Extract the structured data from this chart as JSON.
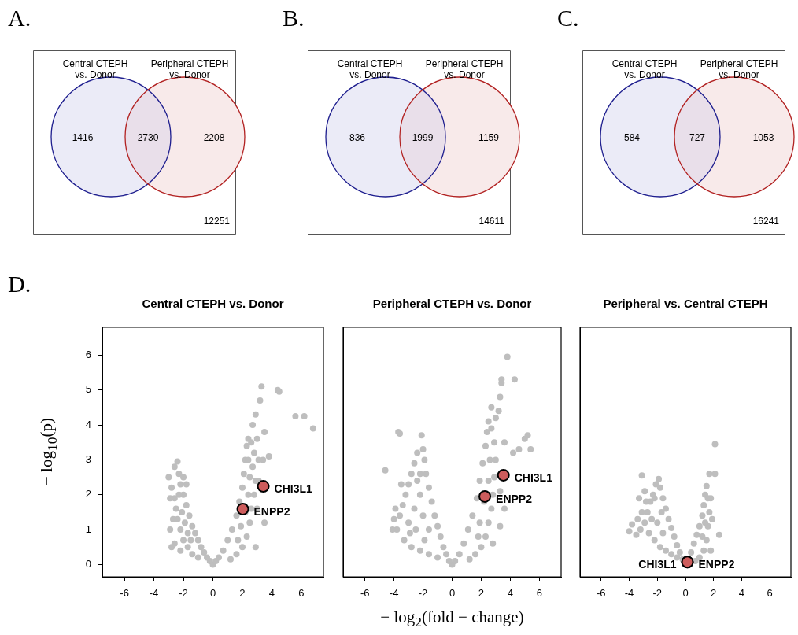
{
  "chart_data": [
    {
      "type": "other",
      "title": "A.",
      "categories": [
        null,
        null,
        null
      ],
      "values": [
        1416,
        2730,
        2208
      ],
      "colors": [
        "#ebebf7",
        "#e9dfea",
        "#f8eaea"
      ],
      "data_labels": true,
      "annotations": [
        "Central CTEPH\nvs. Donor",
        "Peripheral CTEPH\nvs. Donor",
        "12251"
      ]
    },
    {
      "type": "other",
      "title": "B.",
      "categories": [
        null,
        null,
        null
      ],
      "values": [
        836,
        1999,
        1159
      ],
      "colors": [
        "#ebebf7",
        "#e9dfea",
        "#f8eaea"
      ],
      "data_labels": true,
      "annotations": [
        "Central CTEPH\nvs. Donor",
        "Peripheral CTEPH\nvs. Donor",
        "14611"
      ]
    },
    {
      "type": "other",
      "title": "C.",
      "categories": [
        null,
        null,
        null
      ],
      "values": [
        584,
        727,
        1053
      ],
      "colors": [
        "#ebebf7",
        "#e9dfea",
        "#f8eaea"
      ],
      "data_labels": true,
      "annotations": [
        "Central CTEPH\nvs. Donor",
        "Peripheral CTEPH\nvs. Donor",
        "16241"
      ]
    },
    {
      "type": "scatter",
      "title": "Central CTEPH vs. Donor",
      "ylabel": "− log$_{10}$(p)",
      "annotations": [
        "D."
      ],
      "marker": "circle",
      "xlim": [
        -7.5,
        7.5
      ],
      "xticks": [
        -6,
        -4,
        -2,
        0,
        2,
        4,
        6
      ],
      "ylim": [
        -0.35,
        6.8
      ],
      "yticks": [
        0,
        1,
        2,
        3,
        4,
        5,
        6
      ],
      "series": [
        {
          "color": "#bebebe",
          "x": [
            0,
            -0.2,
            -0.4,
            -0.6,
            -0.8,
            -1.0,
            -1.2,
            -1.4,
            -1.6,
            -1.8,
            -2.0,
            -2.2,
            -2.3,
            -2.4,
            -2.6,
            -3.0,
            -2.8,
            -2.6,
            -2.5,
            -2.4,
            -2.2,
            -2.0,
            -1.7,
            -1.4,
            -1.0,
            -2.7,
            -2.9,
            -2.6,
            -2.2,
            -1.9,
            -1.7,
            -2.1,
            -2.3,
            -1.5,
            -2.9,
            -2.0,
            -1.8,
            -2.8,
            0.2,
            0.4,
            0.7,
            1.0,
            1.3,
            1.6,
            1.8,
            2.0,
            2.1,
            2.2,
            2.3,
            2.4,
            2.6,
            2.8,
            2.7,
            2.9,
            2.8,
            2.6,
            2.5,
            2.3,
            2.0,
            1.6,
            1.2,
            1.9,
            2.2,
            2.4,
            2.5,
            2.4,
            1.7,
            3.1,
            3.5,
            3.0,
            2.9,
            3.1,
            3.4,
            3.8,
            3.5,
            2.9,
            3.0,
            2.7,
            3.3,
            4.4,
            4.5,
            5.6,
            6.2,
            6.8,
            3.2
          ],
          "values": [
            0,
            0.1,
            0.2,
            0.35,
            0.5,
            0.7,
            0.9,
            1.1,
            1.4,
            1.7,
            2.0,
            2.3,
            2.6,
            2.95,
            2.8,
            2.5,
            2.2,
            1.9,
            1.6,
            1.3,
            1.0,
            0.7,
            0.5,
            0.3,
            0.2,
            1.3,
            1.0,
            0.6,
            0.4,
            1.2,
            0.9,
            1.5,
            2.0,
            0.7,
            1.9,
            2.5,
            2.3,
            0.5,
            0.1,
            0.2,
            0.4,
            0.7,
            1.0,
            1.4,
            1.8,
            2.2,
            2.6,
            3.0,
            3.4,
            3.6,
            3.5,
            3.2,
            2.8,
            2.4,
            2.0,
            1.6,
            1.2,
            0.8,
            0.5,
            0.3,
            0.15,
            1.1,
            1.5,
            2.0,
            2.5,
            3.0,
            0.7,
            2.4,
            1.2,
            1.6,
            0.5,
            3.0,
            3.0,
            3.1,
            3.8,
            4.3,
            3.6,
            4.0,
            5.1,
            5.0,
            4.95,
            4.25,
            4.25,
            3.9,
            4.7
          ]
        },
        {
          "name": "CHI3L1",
          "color": "#cd5c5c",
          "x": [
            3.42
          ],
          "values": [
            2.24
          ]
        },
        {
          "name": "ENPP2",
          "color": "#cd5c5c",
          "x": [
            2.03
          ],
          "values": [
            1.59
          ]
        }
      ]
    },
    {
      "type": "scatter",
      "title": "Peripheral CTEPH vs. Donor",
      "xlabel": "− log$_{2}$(fold − change)",
      "tick_labels": "x",
      "marker": "circle",
      "xlim": [
        -7.5,
        7.5
      ],
      "xticks": [
        -6,
        -4,
        -2,
        0,
        2,
        4,
        6
      ],
      "ylim": [
        -0.35,
        6.8
      ],
      "series": [
        {
          "color": "#bebebe",
          "x": [
            0,
            -0.2,
            -0.4,
            -0.6,
            -0.8,
            -1.0,
            -1.2,
            -1.4,
            -1.6,
            -1.8,
            -1.9,
            -2.0,
            -2.1,
            -2.4,
            -2.6,
            -2.8,
            -3.0,
            -3.2,
            -3.4,
            -3.6,
            -3.8,
            -3.3,
            -2.8,
            -2.2,
            -1.6,
            -1.0,
            -3.0,
            -2.6,
            -2.2,
            -2.5,
            -2.0,
            -1.6,
            -2.9,
            -1.9,
            -3.5,
            -3.7,
            -3.6,
            -4.6,
            -4.1,
            -4.0,
            -3.9,
            -2.2,
            -2.4,
            0.2,
            0.5,
            0.8,
            1.1,
            1.4,
            1.7,
            1.9,
            2.1,
            2.3,
            2.4,
            2.5,
            2.7,
            2.9,
            3.0,
            2.9,
            2.8,
            2.7,
            2.5,
            2.3,
            2.0,
            1.6,
            1.2,
            1.9,
            2.2,
            2.5,
            2.6,
            1.8,
            3.3,
            3.6,
            2.8,
            3.3,
            4.2,
            4.6,
            5.0,
            5.2,
            5.4,
            3.6,
            3.2,
            3.3,
            3.4,
            3.4,
            4.3,
            3.8,
            2.7,
            3.0
          ],
          "values": [
            0,
            0.1,
            0.3,
            0.5,
            0.8,
            1.1,
            1.4,
            1.8,
            2.2,
            2.6,
            3.0,
            3.3,
            3.7,
            3.2,
            2.9,
            2.6,
            2.3,
            2.0,
            1.7,
            1.4,
            1.0,
            0.7,
            0.5,
            0.4,
            0.3,
            0.2,
            1.2,
            1.6,
            2.0,
            1.0,
            1.4,
            1.0,
            0.9,
            0.7,
            2.3,
            3.8,
            3.75,
            2.7,
            1.0,
            1.3,
            1.6,
            2.6,
            2.4,
            0.1,
            0.3,
            0.6,
            1.0,
            1.4,
            1.9,
            2.4,
            2.9,
            3.4,
            3.8,
            4.1,
            3.9,
            3.5,
            3.0,
            2.5,
            2.0,
            1.6,
            1.2,
            0.8,
            0.5,
            0.3,
            0.15,
            1.2,
            1.8,
            2.4,
            3.0,
            0.8,
            2.1,
            1.6,
            0.6,
            1.1,
            3.2,
            3.3,
            3.6,
            3.7,
            3.3,
            3.5,
            4.4,
            4.8,
            5.2,
            5.3,
            5.3,
            5.95,
            4.5,
            4.2
          ]
        },
        {
          "name": "CHI3L1",
          "color": "#cd5c5c",
          "x": [
            3.53
          ],
          "values": [
            2.56
          ]
        },
        {
          "name": "ENPP2",
          "color": "#cd5c5c",
          "x": [
            2.25
          ],
          "values": [
            1.95
          ]
        }
      ]
    },
    {
      "type": "scatter",
      "title": "Peripheral vs. Central CTEPH",
      "tick_labels": "x",
      "marker": "circle",
      "xlim": [
        -7.5,
        7.5
      ],
      "xticks": [
        -6,
        -4,
        -2,
        0,
        2,
        4,
        6
      ],
      "ylim": [
        -0.35,
        6.8
      ],
      "series": [
        {
          "color": "#bebebe",
          "x": [
            -0.2,
            -0.4,
            -0.6,
            -0.8,
            -1.0,
            -1.2,
            -1.4,
            -1.6,
            -1.8,
            -1.9,
            -2.1,
            -2.3,
            -2.5,
            -2.7,
            -2.9,
            -3.2,
            -3.5,
            -4.0,
            -3.8,
            -3.4,
            -3.1,
            -2.8,
            -3.1,
            -2.9,
            -2.6,
            -2.2,
            -1.8,
            -1.4,
            -1.0,
            -0.6,
            -2.0,
            -1.6,
            -2.4,
            -1.7,
            -2.2,
            -3.3,
            0.4,
            0.6,
            0.8,
            1.0,
            1.2,
            1.3,
            1.4,
            1.5,
            1.7,
            2.1,
            2.1,
            1.6,
            1.7,
            1.6,
            1.5,
            1.3,
            1.0,
            0.7,
            1.8,
            2.4,
            1.8,
            1.9,
            1.4,
            1.2
          ],
          "values": [
            0.15,
            0.35,
            0.55,
            0.8,
            1.05,
            1.3,
            1.6,
            1.9,
            2.2,
            2.45,
            2.3,
            2.0,
            1.8,
            1.5,
            1.2,
            1.0,
            0.85,
            0.95,
            1.15,
            1.3,
            1.5,
            1.8,
            2.55,
            2.1,
            0.9,
            0.7,
            0.5,
            0.4,
            0.3,
            0.2,
            1.2,
            0.9,
            1.3,
            1.5,
            1.9,
            1.9,
            0.35,
            0.6,
            0.85,
            1.1,
            1.4,
            1.7,
            2.0,
            2.25,
            2.6,
            2.6,
            3.45,
            1.9,
            1.5,
            1.1,
            0.7,
            0.4,
            0.2,
            0.1,
            0.4,
            0.85,
            1.9,
            1.3,
            1.2,
            0.8
          ]
        },
        {
          "name": "CHI3L1",
          "color": "#cd5c5c",
          "x": [
            0.14
          ],
          "values": [
            0.07
          ]
        },
        {
          "name": "ENPP2",
          "color": "#cd5c5c",
          "x": [
            0.14
          ],
          "values": [
            0.07
          ]
        }
      ]
    }
  ]
}
